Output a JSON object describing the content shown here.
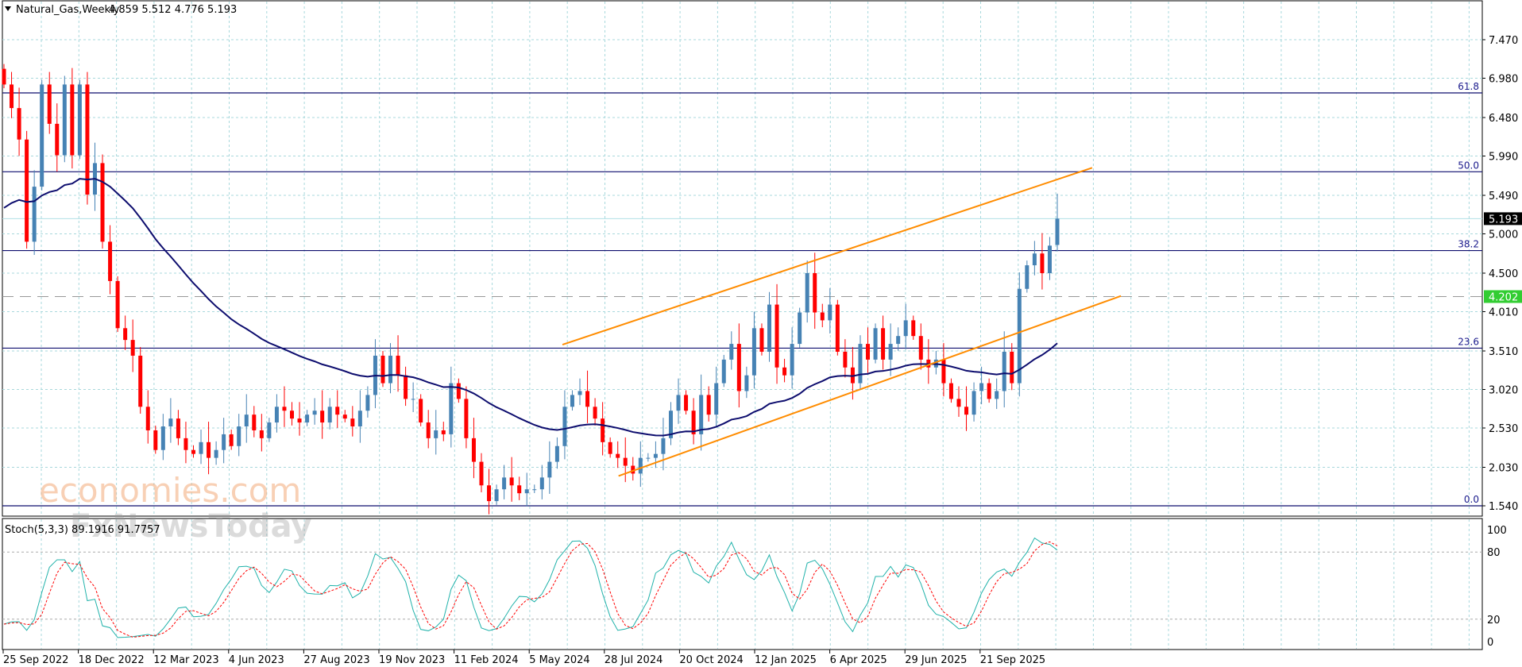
{
  "header": {
    "symbol_label": "Natural_Gas,Weekly",
    "ohlc_text": "4.859 5.512 4.776 5.193"
  },
  "indicator": {
    "label": "Stoch(5,3,3) 89.1916 91.7757",
    "levels": [
      "100",
      "80",
      "20",
      "0"
    ]
  },
  "watermarks": [
    "economies.com",
    "FxNewsToday"
  ],
  "colors": {
    "bull": "#4682b4",
    "bear": "#ff0000",
    "ma": "#0d0d6e",
    "channel": "#ff8c00",
    "fib": "#0d0d6e",
    "grid": "#a8d8dc",
    "stoch_main": "#20b2aa",
    "stoch_signal": "#ff0000",
    "last_price_bg": "#000000",
    "bid_line_bg": "#32cd32"
  },
  "chart_data": {
    "type": "candlestick",
    "title": "Natural_Gas,Weekly",
    "ylim": [
      1.3,
      7.92
    ],
    "y_ticks": [
      "7.470",
      "6.980",
      "6.480",
      "5.990",
      "5.490",
      "5.000",
      "4.500",
      "4.010",
      "3.510",
      "3.020",
      "2.530",
      "2.030",
      "1.540"
    ],
    "x_tick_labels": [
      "25 Sep 2022",
      "18 Dec 2022",
      "12 Mar 2023",
      "4 Jun 2023",
      "27 Aug 2023",
      "19 Nov 2023",
      "11 Feb 2024",
      "5 May 2024",
      "28 Jul 2024",
      "20 Oct 2024",
      "12 Jan 2025",
      "6 Apr 2025",
      "29 Jun 2025",
      "21 Sep 2025"
    ],
    "first_open": 7.1,
    "last_candle": {
      "open": 4.859,
      "high": 5.512,
      "low": 4.776,
      "close": 5.193
    },
    "closes": [
      6.9,
      6.6,
      6.2,
      4.9,
      5.6,
      6.9,
      6.4,
      6.0,
      6.9,
      6.0,
      6.9,
      5.5,
      5.9,
      4.9,
      4.4,
      3.8,
      3.65,
      3.45,
      2.8,
      2.5,
      2.25,
      2.55,
      2.65,
      2.4,
      2.25,
      2.2,
      2.35,
      2.15,
      2.25,
      2.45,
      2.3,
      2.55,
      2.7,
      2.5,
      2.4,
      2.6,
      2.8,
      2.75,
      2.65,
      2.6,
      2.7,
      2.75,
      2.6,
      2.8,
      2.7,
      2.65,
      2.55,
      2.75,
      2.95,
      3.45,
      3.1,
      3.45,
      3.2,
      2.9,
      2.9,
      2.6,
      2.4,
      2.5,
      2.45,
      3.1,
      2.9,
      2.4,
      2.1,
      1.8,
      1.6,
      1.75,
      1.9,
      1.8,
      1.7,
      1.75,
      1.75,
      1.9,
      2.1,
      2.3,
      2.8,
      2.95,
      3.0,
      2.8,
      2.65,
      2.35,
      2.2,
      2.15,
      2.05,
      1.95,
      2.15,
      2.15,
      2.2,
      2.4,
      2.75,
      2.95,
      2.75,
      2.45,
      2.95,
      2.7,
      3.1,
      3.4,
      3.6,
      3.0,
      3.2,
      3.8,
      3.5,
      4.1,
      3.3,
      3.2,
      3.6,
      4.0,
      4.5,
      4.0,
      3.9,
      4.1,
      3.5,
      3.3,
      3.1,
      3.6,
      3.4,
      3.8,
      3.4,
      3.6,
      3.7,
      3.9,
      3.7,
      3.4,
      3.3,
      3.4,
      3.1,
      2.9,
      2.8,
      2.7,
      3.0,
      3.1,
      2.9,
      3.0,
      3.5,
      3.1,
      4.3,
      4.6,
      4.75,
      4.5,
      4.85,
      5.193
    ],
    "moving_average": {
      "type": "EMA",
      "period": 40,
      "seed": 5.25
    },
    "fibonacci": {
      "low": 1.54,
      "high": 10.04,
      "levels": [
        {
          "label": "61.8",
          "ratio": 0.618
        },
        {
          "label": "50.0",
          "ratio": 0.5
        },
        {
          "label": "38.2",
          "ratio": 0.382
        },
        {
          "label": "23.6",
          "ratio": 0.236
        },
        {
          "label": "0.0",
          "ratio": 0.0
        }
      ]
    },
    "channel": {
      "upper": {
        "from": [
          73.7,
          3.59
        ],
        "to": [
          143.6,
          5.84
        ]
      },
      "lower": {
        "from": [
          81.1,
          1.92
        ],
        "to": [
          147.4,
          4.21
        ]
      }
    },
    "last_price": "5.193",
    "bid_line": "4.202",
    "stochastic": {
      "k": 5,
      "d": 3,
      "slowing": 3,
      "ylim": [
        0,
        100
      ],
      "levels": [
        80,
        20
      ]
    }
  }
}
